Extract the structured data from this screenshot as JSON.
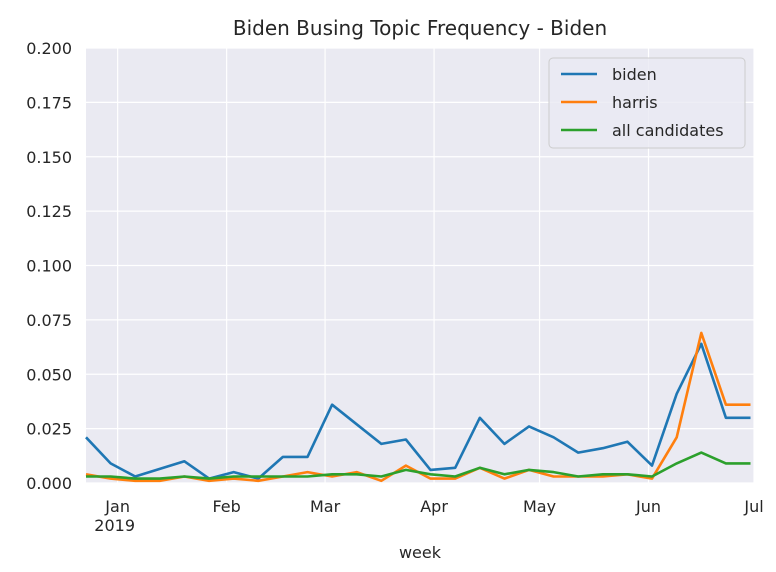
{
  "chart_data": {
    "type": "line",
    "title": "Biden Busing Topic Frequency - Biden",
    "xlabel": "week",
    "ylabel": "",
    "ylim": [
      0,
      0.2
    ],
    "yticks": [
      "0.000",
      "0.025",
      "0.050",
      "0.075",
      "0.100",
      "0.125",
      "0.150",
      "0.175",
      "0.200"
    ],
    "ytick_values": [
      0,
      0.025,
      0.05,
      0.075,
      0.1,
      0.125,
      0.15,
      0.175,
      0.2
    ],
    "xlim": [
      "2018-12-23",
      "2019-07-01"
    ],
    "xticks": [
      {
        "label": "Jan",
        "sublabel": "2019",
        "date": "2019-01-01"
      },
      {
        "label": "Feb",
        "sublabel": "",
        "date": "2019-02-01"
      },
      {
        "label": "Mar",
        "sublabel": "",
        "date": "2019-03-01"
      },
      {
        "label": "Apr",
        "sublabel": "",
        "date": "2019-04-01"
      },
      {
        "label": "May",
        "sublabel": "",
        "date": "2019-05-01"
      },
      {
        "label": "Jun",
        "sublabel": "",
        "date": "2019-06-01"
      },
      {
        "label": "Jul",
        "sublabel": "",
        "date": "2019-07-01"
      }
    ],
    "grid": true,
    "legend_position": "top-right",
    "x": [
      "2018-12-23",
      "2018-12-30",
      "2019-01-06",
      "2019-01-13",
      "2019-01-20",
      "2019-01-27",
      "2019-02-03",
      "2019-02-10",
      "2019-02-17",
      "2019-02-24",
      "2019-03-03",
      "2019-03-10",
      "2019-03-17",
      "2019-03-24",
      "2019-03-31",
      "2019-04-07",
      "2019-04-14",
      "2019-04-21",
      "2019-04-28",
      "2019-05-05",
      "2019-05-12",
      "2019-05-19",
      "2019-05-26",
      "2019-06-02",
      "2019-06-09",
      "2019-06-16",
      "2019-06-23",
      "2019-06-30"
    ],
    "series": [
      {
        "name": "biden",
        "color": "#1f77b4",
        "values": [
          0.021,
          0.009,
          0.003,
          0.0065,
          0.01,
          0.002,
          0.005,
          0.002,
          0.012,
          0.012,
          0.036,
          0.027,
          0.018,
          0.02,
          0.006,
          0.007,
          0.03,
          0.018,
          0.026,
          0.021,
          0.014,
          0.016,
          0.019,
          0.008,
          0.041,
          0.064,
          0.03,
          0.03
        ]
      },
      {
        "name": "harris",
        "color": "#ff7f0e",
        "values": [
          0.004,
          0.002,
          0.001,
          0.001,
          0.003,
          0.001,
          0.002,
          0.001,
          0.003,
          0.005,
          0.003,
          0.005,
          0.001,
          0.008,
          0.002,
          0.002,
          0.007,
          0.002,
          0.006,
          0.003,
          0.003,
          0.003,
          0.004,
          0.002,
          0.021,
          0.069,
          0.036,
          0.036
        ]
      },
      {
        "name": "all candidates",
        "color": "#2ca02c",
        "values": [
          0.003,
          0.003,
          0.002,
          0.002,
          0.003,
          0.002,
          0.003,
          0.003,
          0.003,
          0.003,
          0.004,
          0.004,
          0.003,
          0.006,
          0.004,
          0.003,
          0.007,
          0.004,
          0.006,
          0.005,
          0.003,
          0.004,
          0.004,
          0.003,
          0.009,
          0.014,
          0.009,
          0.009
        ]
      }
    ]
  }
}
